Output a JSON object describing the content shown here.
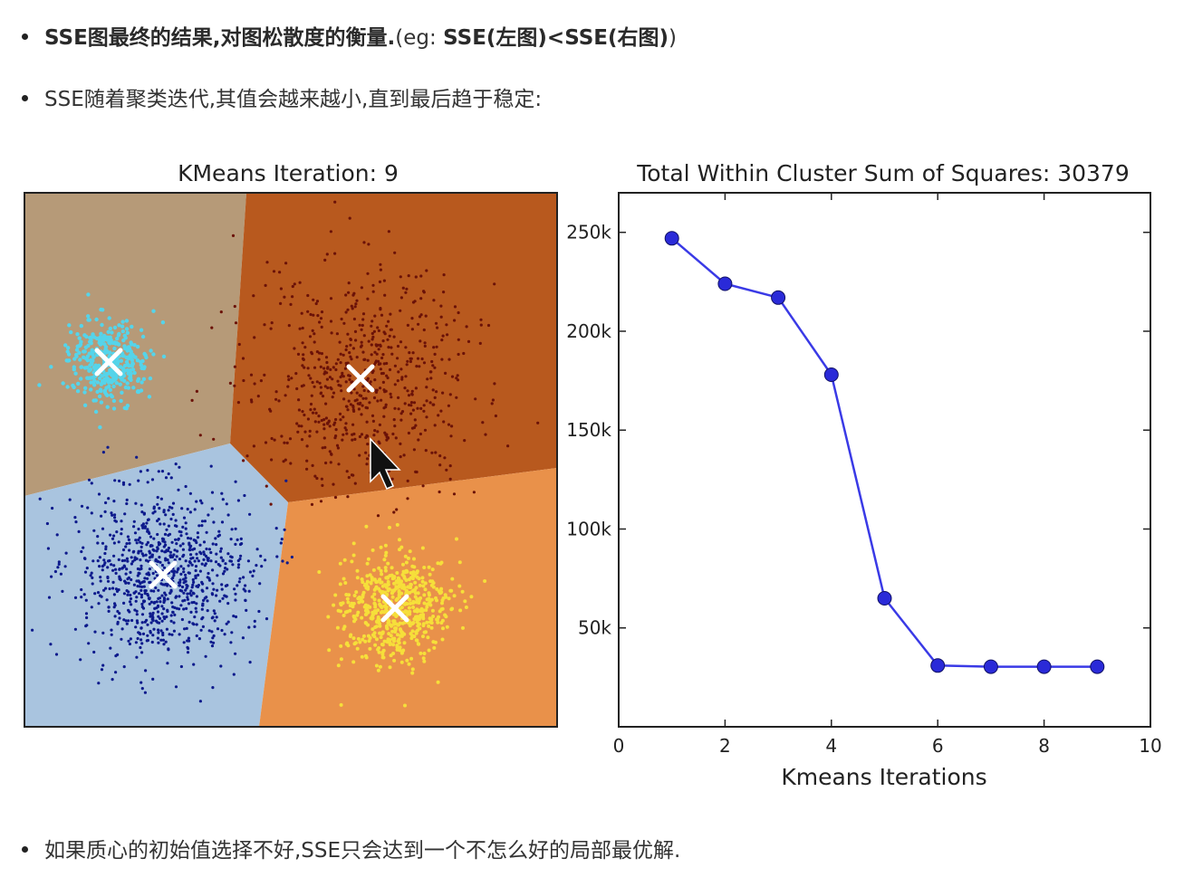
{
  "bullets": {
    "first": {
      "part1": "SSE图最终的结果,对图松散度的衡量.",
      "part2": "(eg: ",
      "part3": "SSE(左图)<SSE(右图)",
      "part4": ")"
    },
    "second": "SSE随着聚类迭代,其值会越来越小,直到最后趋于稳定:",
    "third": "如果质心的初始值选择不好,SSE只会达到一个不怎么好的局部最优解."
  },
  "chart_data": [
    {
      "type": "scatter",
      "title": "KMeans Iteration: 9",
      "clusters": [
        {
          "name": "",
          "color": "#55d4ea",
          "region_color": "#b69a78"
        },
        {
          "name": "",
          "color": "#6b1208",
          "region_color": "#b8591e"
        },
        {
          "name": "",
          "color": "#0d1a8c",
          "region_color": "#a9c4df"
        },
        {
          "name": "",
          "color": "#f6df3a",
          "region_color": "#e9914a"
        }
      ],
      "centroid_marker": "x",
      "grid": false
    },
    {
      "type": "line",
      "title": "Total Within Cluster Sum of Squares: 30379",
      "xlabel": "Kmeans Iterations",
      "ylabel": "",
      "x": [
        1,
        2,
        3,
        4,
        5,
        6,
        7,
        8,
        9
      ],
      "y": [
        247000,
        224000,
        217000,
        178000,
        65000,
        31000,
        30400,
        30379,
        30379
      ],
      "xlim": [
        0,
        10
      ],
      "ylim": [
        0,
        270000
      ],
      "xticks": [
        "0",
        "2",
        "4",
        "6",
        "8",
        "10"
      ],
      "yticks": [
        "50k",
        "100k",
        "150k",
        "200k",
        "250k"
      ],
      "line_color": "#3a3ae6",
      "marker_color": "#2a2ad8",
      "grid": false
    }
  ]
}
